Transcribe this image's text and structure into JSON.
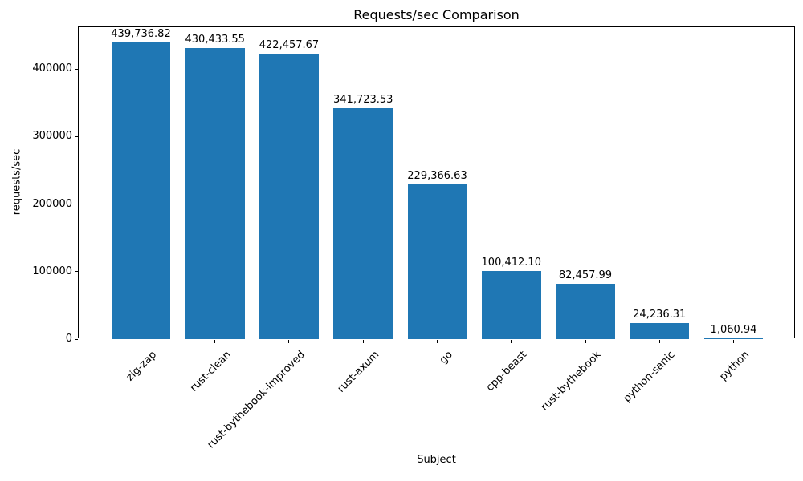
{
  "chart_data": {
    "type": "bar",
    "title": "Requests/sec Comparison",
    "xlabel": "Subject",
    "ylabel": "requests/sec",
    "categories": [
      "zig-zap",
      "rust-clean",
      "rust-bythebook-improved",
      "rust-axum",
      "go",
      "cpp-beast",
      "rust-bythebook",
      "python-sanic",
      "python"
    ],
    "values": [
      439736.82,
      430433.55,
      422457.67,
      341723.53,
      229366.63,
      100412.1,
      82457.99,
      24236.31,
      1060.94
    ],
    "bar_labels": [
      "439,736.82",
      "430,433.55",
      "422,457.67",
      "341,723.53",
      "229,366.63",
      "100,412.10",
      "82,457.99",
      "24,236.31",
      "1,060.94"
    ],
    "yticks": [
      0,
      100000,
      200000,
      300000,
      400000
    ],
    "ytick_labels": [
      "0",
      "100000",
      "200000",
      "300000",
      "400000"
    ],
    "ylim": [
      0,
      461724
    ],
    "x_tick_rotation_deg": 45,
    "grid": false,
    "legend": "none",
    "bar_color": "#1f77b4",
    "axis_color": "#000000",
    "text_color": "#000000",
    "background_color": "#ffffff"
  }
}
